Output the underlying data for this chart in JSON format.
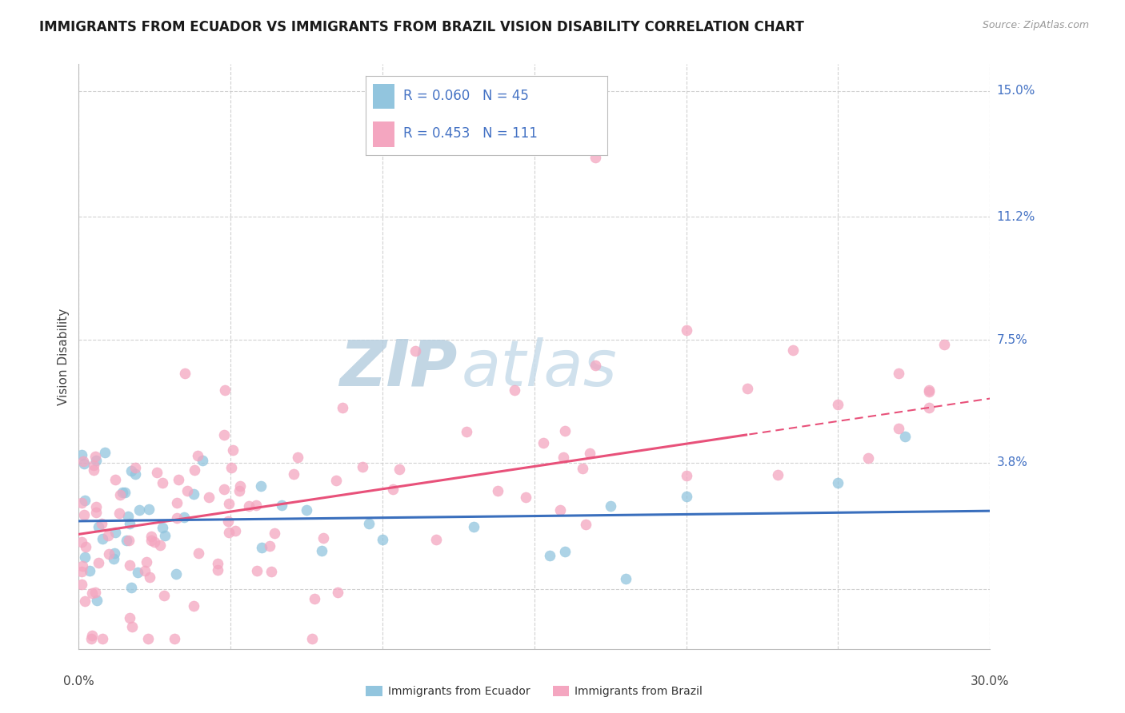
{
  "title": "IMMIGRANTS FROM ECUADOR VS IMMIGRANTS FROM BRAZIL VISION DISABILITY CORRELATION CHART",
  "source": "Source: ZipAtlas.com",
  "ylabel": "Vision Disability",
  "xlim": [
    0.0,
    0.3
  ],
  "ylim": [
    -0.018,
    0.158
  ],
  "yticks": [
    0.0,
    0.038,
    0.075,
    0.112,
    0.15
  ],
  "xticks": [
    0.0,
    0.05,
    0.1,
    0.15,
    0.2,
    0.25,
    0.3
  ],
  "ecuador_R": 0.06,
  "ecuador_N": 45,
  "brazil_R": 0.453,
  "brazil_N": 111,
  "ecuador_color": "#92c5de",
  "brazil_color": "#f4a6c0",
  "ecuador_line_color": "#3a6fbd",
  "brazil_line_color": "#e8517a",
  "watermark_zip_color": "#c5d9ea",
  "watermark_atlas_color": "#c5d9ea",
  "right_tick_color": "#4472c4",
  "background_color": "#ffffff",
  "grid_color": "#cccccc",
  "title_fontsize": 12,
  "axis_label_fontsize": 11,
  "tick_fontsize": 11,
  "legend_fontsize": 12,
  "brazil_line_split": 0.22
}
